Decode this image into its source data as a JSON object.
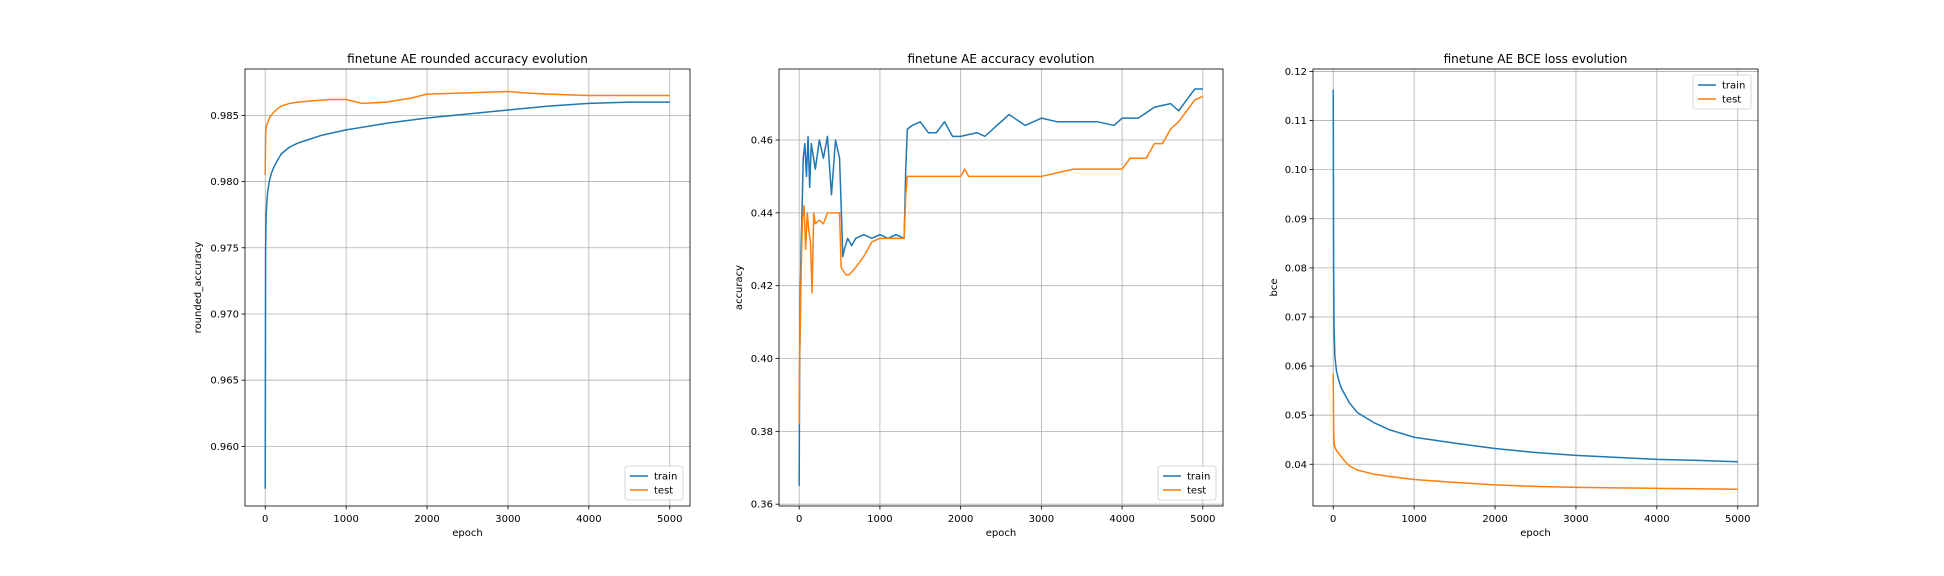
{
  "chart_data": [
    {
      "type": "line",
      "title": "finetune AE rounded accuracy evolution",
      "xlabel": "epoch",
      "ylabel": "rounded_accuracy",
      "xlim": [
        -250,
        5250
      ],
      "ylim": [
        0.9555,
        0.9885
      ],
      "xticks": [
        0,
        1000,
        2000,
        3000,
        4000,
        5000
      ],
      "xtick_labels": [
        "0",
        "1000",
        "2000",
        "3000",
        "4000",
        "5000"
      ],
      "yticks": [
        0.96,
        0.965,
        0.97,
        0.975,
        0.98,
        0.985
      ],
      "ytick_labels": [
        "0.960",
        "0.965",
        "0.970",
        "0.975",
        "0.980",
        "0.985"
      ],
      "grid": true,
      "legend": "lower-right",
      "series": [
        {
          "name": "train",
          "color": "#1f77b4",
          "x": [
            0,
            5,
            10,
            20,
            30,
            50,
            75,
            100,
            150,
            200,
            300,
            400,
            500,
            700,
            1000,
            1500,
            2000,
            2500,
            3000,
            3500,
            4000,
            4500,
            5000
          ],
          "y": [
            0.9568,
            0.975,
            0.9773,
            0.9785,
            0.9792,
            0.98,
            0.9806,
            0.981,
            0.9816,
            0.9821,
            0.9826,
            0.9829,
            0.9831,
            0.9835,
            0.9839,
            0.9844,
            0.9848,
            0.9851,
            0.9854,
            0.9857,
            0.9859,
            0.986,
            0.986
          ]
        },
        {
          "name": "test",
          "color": "#ff7f0e",
          "x": [
            0,
            5,
            10,
            20,
            40,
            60,
            100,
            150,
            200,
            300,
            400,
            600,
            800,
            1000,
            1200,
            1500,
            1800,
            2000,
            2500,
            3000,
            3200,
            3500,
            4000,
            4500,
            5000
          ],
          "y": [
            0.9805,
            0.9835,
            0.984,
            0.9843,
            0.9846,
            0.9849,
            0.9852,
            0.9855,
            0.9857,
            0.9859,
            0.986,
            0.9861,
            0.9862,
            0.9862,
            0.9859,
            0.986,
            0.9863,
            0.9866,
            0.9867,
            0.9868,
            0.9867,
            0.9866,
            0.9865,
            0.9865,
            0.9865
          ]
        }
      ]
    },
    {
      "type": "line",
      "title": "finetune AE accuracy evolution",
      "xlabel": "epoch",
      "ylabel": "accuracy",
      "xlim": [
        -250,
        5250
      ],
      "ylim": [
        0.3595,
        0.4795
      ],
      "xticks": [
        0,
        1000,
        2000,
        3000,
        4000,
        5000
      ],
      "xtick_labels": [
        "0",
        "1000",
        "2000",
        "3000",
        "4000",
        "5000"
      ],
      "yticks": [
        0.36,
        0.38,
        0.4,
        0.42,
        0.44,
        0.46
      ],
      "ytick_labels": [
        "0.36",
        "0.38",
        "0.40",
        "0.42",
        "0.44",
        "0.46"
      ],
      "grid": true,
      "legend": "lower-right",
      "series": [
        {
          "name": "train",
          "color": "#1f77b4",
          "x": [
            0,
            5,
            15,
            25,
            35,
            50,
            70,
            90,
            110,
            130,
            150,
            200,
            250,
            300,
            350,
            400,
            450,
            500,
            520,
            540,
            560,
            600,
            650,
            700,
            800,
            900,
            1000,
            1100,
            1200,
            1300,
            1320,
            1340,
            1400,
            1500,
            1600,
            1700,
            1800,
            1900,
            2000,
            2200,
            2300,
            2500,
            2600,
            2800,
            3000,
            3200,
            3500,
            3700,
            3900,
            4000,
            4200,
            4400,
            4600,
            4700,
            4800,
            4900,
            5000
          ],
          "y": [
            0.365,
            0.395,
            0.42,
            0.432,
            0.44,
            0.455,
            0.459,
            0.45,
            0.461,
            0.447,
            0.459,
            0.452,
            0.46,
            0.455,
            0.461,
            0.445,
            0.46,
            0.455,
            0.442,
            0.428,
            0.43,
            0.433,
            0.431,
            0.433,
            0.434,
            0.433,
            0.434,
            0.433,
            0.434,
            0.433,
            0.452,
            0.463,
            0.464,
            0.465,
            0.462,
            0.462,
            0.465,
            0.461,
            0.461,
            0.462,
            0.461,
            0.465,
            0.467,
            0.464,
            0.466,
            0.465,
            0.465,
            0.465,
            0.464,
            0.466,
            0.466,
            0.469,
            0.47,
            0.468,
            0.471,
            0.474,
            0.474
          ]
        },
        {
          "name": "test",
          "color": "#ff7f0e",
          "x": [
            0,
            5,
            15,
            25,
            40,
            60,
            80,
            100,
            120,
            140,
            160,
            180,
            200,
            250,
            300,
            350,
            400,
            450,
            500,
            520,
            550,
            580,
            620,
            700,
            800,
            900,
            1000,
            1100,
            1200,
            1300,
            1320,
            1340,
            1500,
            1700,
            2000,
            2050,
            2100,
            2200,
            2500,
            3000,
            3400,
            3500,
            3800,
            4000,
            4100,
            4300,
            4400,
            4500,
            4600,
            4700,
            4800,
            4900,
            5000
          ],
          "y": [
            0.382,
            0.4,
            0.41,
            0.425,
            0.438,
            0.442,
            0.43,
            0.44,
            0.435,
            0.432,
            0.418,
            0.44,
            0.437,
            0.438,
            0.437,
            0.44,
            0.44,
            0.44,
            0.44,
            0.425,
            0.424,
            0.423,
            0.423,
            0.425,
            0.428,
            0.432,
            0.433,
            0.433,
            0.433,
            0.433,
            0.445,
            0.45,
            0.45,
            0.45,
            0.45,
            0.452,
            0.45,
            0.45,
            0.45,
            0.45,
            0.452,
            0.452,
            0.452,
            0.452,
            0.455,
            0.455,
            0.459,
            0.459,
            0.463,
            0.465,
            0.468,
            0.471,
            0.472
          ]
        }
      ]
    },
    {
      "type": "line",
      "title": "finetune AE BCE loss evolution",
      "xlabel": "epoch",
      "ylabel": "bce",
      "xlim": [
        -250,
        5250
      ],
      "ylim": [
        0.0315,
        0.1205
      ],
      "xticks": [
        0,
        1000,
        2000,
        3000,
        4000,
        5000
      ],
      "xtick_labels": [
        "0",
        "1000",
        "2000",
        "3000",
        "4000",
        "5000"
      ],
      "yticks": [
        0.04,
        0.05,
        0.06,
        0.07,
        0.08,
        0.09,
        0.1,
        0.11,
        0.12
      ],
      "ytick_labels": [
        "0.04",
        "0.05",
        "0.06",
        "0.07",
        "0.08",
        "0.09",
        "0.10",
        "0.11",
        "0.12"
      ],
      "grid": true,
      "legend": "upper-right",
      "series": [
        {
          "name": "train",
          "color": "#1f77b4",
          "x": [
            0,
            5,
            10,
            20,
            40,
            70,
            100,
            150,
            200,
            300,
            500,
            700,
            1000,
            1500,
            2000,
            2500,
            3000,
            3500,
            4000,
            4500,
            5000
          ],
          "y": [
            0.1163,
            0.08,
            0.068,
            0.062,
            0.059,
            0.057,
            0.0555,
            0.054,
            0.0525,
            0.0505,
            0.0485,
            0.047,
            0.0455,
            0.0443,
            0.0432,
            0.0424,
            0.0418,
            0.0414,
            0.041,
            0.0408,
            0.0405
          ]
        },
        {
          "name": "test",
          "color": "#ff7f0e",
          "x": [
            0,
            5,
            10,
            20,
            40,
            70,
            100,
            150,
            200,
            300,
            500,
            700,
            1000,
            1500,
            2000,
            2500,
            3000,
            3500,
            4000,
            4500,
            5000
          ],
          "y": [
            0.0585,
            0.047,
            0.0445,
            0.0435,
            0.0428,
            0.0422,
            0.0415,
            0.0405,
            0.0397,
            0.0388,
            0.038,
            0.0375,
            0.0369,
            0.0363,
            0.0358,
            0.0355,
            0.0353,
            0.0352,
            0.0351,
            0.035,
            0.0349
          ]
        }
      ]
    }
  ]
}
